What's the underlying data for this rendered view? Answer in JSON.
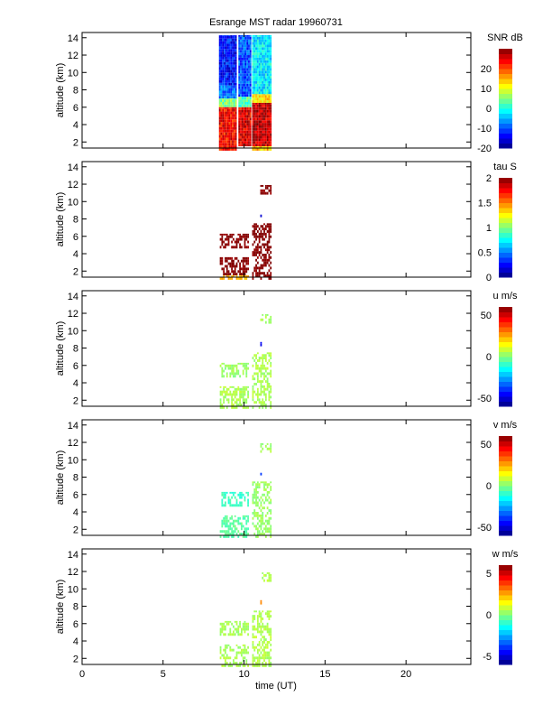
{
  "chart_data": {
    "type": "heatmap",
    "title": "Esrange MST radar 19960731",
    "xlabel": "time (UT)",
    "xlim": [
      0,
      24
    ],
    "xticks": [
      0,
      5,
      10,
      15,
      20
    ],
    "ylabel": "altitude (km)",
    "ylim": [
      1.3,
      14.6
    ],
    "yticks": [
      2,
      4,
      6,
      8,
      10,
      12,
      14
    ],
    "panels": [
      {
        "colorbar_label": "SNR dB",
        "clim": [
          -20,
          30
        ],
        "cticks": [
          -20,
          -10,
          0,
          10,
          20
        ],
        "density": 1.0,
        "blocks": [
          {
            "t": [
              8.45,
              9.55
            ],
            "z": [
              8.5,
              14.3
            ],
            "value": -13
          },
          {
            "t": [
              8.45,
              9.55
            ],
            "z": [
              7.0,
              8.5
            ],
            "value": -8
          },
          {
            "t": [
              8.45,
              9.55
            ],
            "z": [
              6.0,
              7.0
            ],
            "value": 5
          },
          {
            "t": [
              8.45,
              9.55
            ],
            "z": [
              1.0,
              6.0
            ],
            "value": 24
          },
          {
            "t": [
              9.65,
              10.4
            ],
            "z": [
              7.2,
              14.3
            ],
            "value": -10
          },
          {
            "t": [
              9.65,
              10.4
            ],
            "z": [
              6.0,
              7.2
            ],
            "value": 3
          },
          {
            "t": [
              9.65,
              10.4
            ],
            "z": [
              1.5,
              6.0
            ],
            "value": 25
          },
          {
            "t": [
              10.5,
              11.7
            ],
            "z": [
              7.5,
              14.3
            ],
            "value": -2
          },
          {
            "t": [
              10.5,
              11.7
            ],
            "z": [
              6.5,
              7.5
            ],
            "value": 12
          },
          {
            "t": [
              10.5,
              11.7
            ],
            "z": [
              1.5,
              6.5
            ],
            "value": 27
          },
          {
            "t": [
              10.5,
              11.7
            ],
            "z": [
              1.0,
              1.5
            ],
            "value": 14
          }
        ]
      },
      {
        "colorbar_label": "tau S",
        "clim": [
          0,
          2
        ],
        "cticks": [
          0,
          0.5,
          1,
          1.5,
          2
        ],
        "density": 0.6,
        "blocks": [
          {
            "t": [
              8.5,
              10.3
            ],
            "z": [
              4.6,
              6.3
            ],
            "value": 2
          },
          {
            "t": [
              8.5,
              10.3
            ],
            "z": [
              1.5,
              3.6
            ],
            "value": 2
          },
          {
            "t": [
              8.5,
              10.3
            ],
            "z": [
              1.0,
              1.5
            ],
            "value": 1.4
          },
          {
            "t": [
              10.5,
              11.7
            ],
            "z": [
              1.0,
              7.5
            ],
            "value": 2
          },
          {
            "t": [
              11.0,
              11.7
            ],
            "z": [
              10.8,
              11.9
            ],
            "value": 2
          },
          {
            "t": [
              11.0,
              11.1
            ],
            "z": [
              8.2,
              8.7
            ],
            "value": 0.2
          }
        ]
      },
      {
        "colorbar_label": "u m/s",
        "clim": [
          -60,
          60
        ],
        "cticks": [
          -50,
          0,
          50
        ],
        "density": 0.55,
        "blocks": [
          {
            "t": [
              8.5,
              10.3
            ],
            "z": [
              4.6,
              6.3
            ],
            "value": 3
          },
          {
            "t": [
              8.5,
              10.3
            ],
            "z": [
              1.0,
              3.6
            ],
            "value": 5
          },
          {
            "t": [
              10.5,
              11.7
            ],
            "z": [
              1.0,
              7.5
            ],
            "value": 5
          },
          {
            "t": [
              11.0,
              11.7
            ],
            "z": [
              10.8,
              11.9
            ],
            "value": 4
          },
          {
            "t": [
              11.0,
              11.1
            ],
            "z": [
              8.2,
              8.7
            ],
            "value": -45
          }
        ]
      },
      {
        "colorbar_label": "v m/s",
        "clim": [
          -60,
          60
        ],
        "cticks": [
          -50,
          0,
          50
        ],
        "density": 0.55,
        "blocks": [
          {
            "t": [
              8.5,
              10.3
            ],
            "z": [
              4.6,
              6.3
            ],
            "value": -8
          },
          {
            "t": [
              8.5,
              10.3
            ],
            "z": [
              1.0,
              3.6
            ],
            "value": -4
          },
          {
            "t": [
              10.5,
              11.7
            ],
            "z": [
              1.0,
              7.5
            ],
            "value": 3
          },
          {
            "t": [
              11.0,
              11.7
            ],
            "z": [
              10.8,
              11.9
            ],
            "value": 4
          },
          {
            "t": [
              11.0,
              11.1
            ],
            "z": [
              8.2,
              8.7
            ],
            "value": -40
          }
        ]
      },
      {
        "colorbar_label": "w m/s",
        "clim": [
          -6,
          6
        ],
        "cticks": [
          -5,
          0,
          5
        ],
        "density": 0.55,
        "blocks": [
          {
            "t": [
              8.5,
              10.3
            ],
            "z": [
              4.6,
              6.3
            ],
            "value": 0.5
          },
          {
            "t": [
              8.5,
              10.3
            ],
            "z": [
              1.0,
              3.6
            ],
            "value": 0.5
          },
          {
            "t": [
              10.5,
              11.7
            ],
            "z": [
              1.0,
              7.5
            ],
            "value": 0.6
          },
          {
            "t": [
              11.0,
              11.7
            ],
            "z": [
              10.8,
              11.9
            ],
            "value": 0.6
          },
          {
            "t": [
              11.0,
              11.1
            ],
            "z": [
              8.2,
              8.7
            ],
            "value": 3
          }
        ]
      }
    ]
  }
}
